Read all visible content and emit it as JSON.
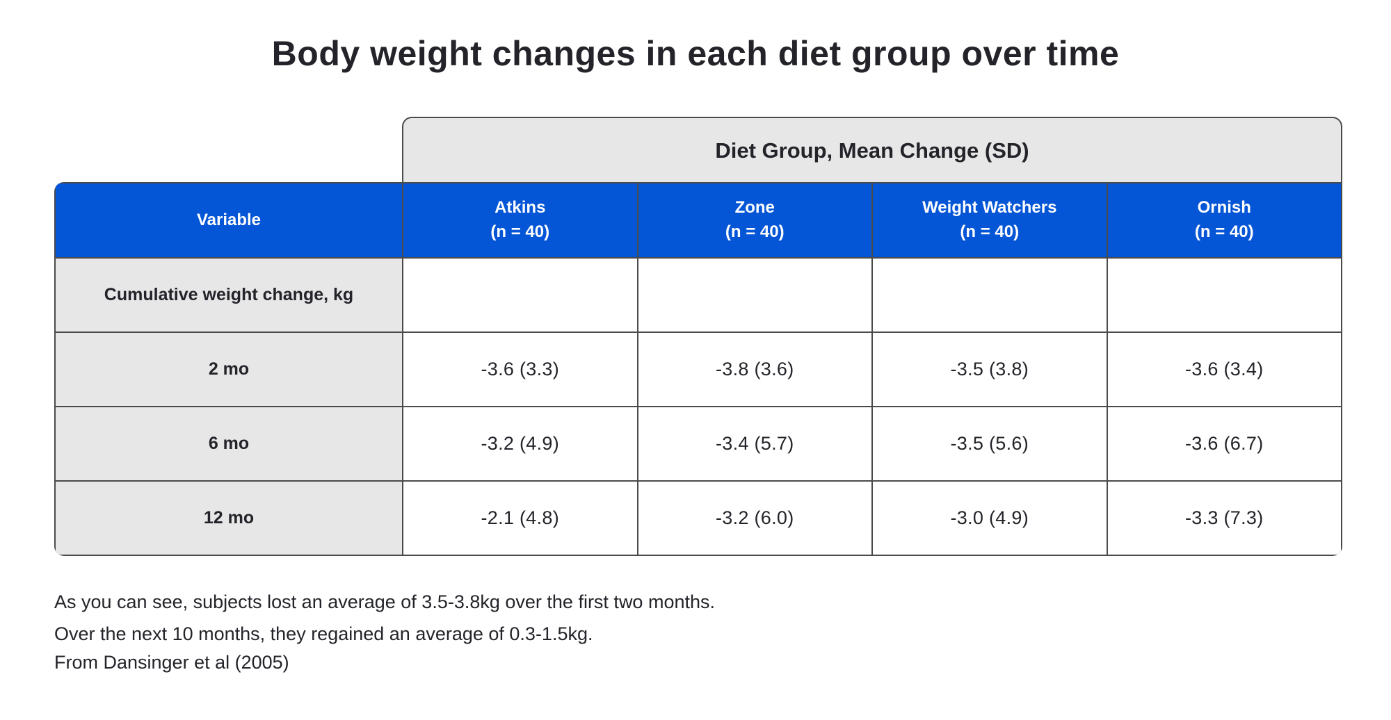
{
  "title": "Body weight changes in each diet group over time",
  "table": {
    "span_header": "Diet Group, Mean Change (SD)",
    "columns": [
      {
        "label": "Variable",
        "sub": ""
      },
      {
        "label": "Atkins",
        "sub": "(n = 40)"
      },
      {
        "label": "Zone",
        "sub": "(n = 40)"
      },
      {
        "label": "Weight Watchers",
        "sub": "(n = 40)"
      },
      {
        "label": "Ornish",
        "sub": "(n = 40)"
      }
    ],
    "rows": [
      {
        "label": "Cumulative weight change, kg",
        "values": [
          "",
          "",
          "",
          ""
        ]
      },
      {
        "label": "2 mo",
        "values": [
          "-3.6 (3.3)",
          "-3.8 (3.6)",
          "-3.5 (3.8)",
          "-3.6 (3.4)"
        ]
      },
      {
        "label": "6 mo",
        "values": [
          "-3.2 (4.9)",
          "-3.4 (5.7)",
          "-3.5 (5.6)",
          "-3.6 (6.7)"
        ]
      },
      {
        "label": "12 mo",
        "values": [
          "-2.1 (4.8)",
          "-3.2 (6.0)",
          "-3.0 (4.9)",
          "-3.3 (7.3)"
        ]
      }
    ]
  },
  "notes": {
    "line1": "As you can see, subjects lost an average of 3.5-3.8kg over the first two months.",
    "line2": "Over the next 10 months, they regained an average of 0.3-1.5kg.",
    "source": "From Dansinger et al (2005)"
  },
  "colors": {
    "header_blue": "#0556D6",
    "light_gray": "#E7E7E7",
    "border_gray": "#4a4a4a",
    "text_dark": "#232329",
    "background": "#ffffff"
  },
  "chart_data": {
    "type": "table",
    "title": "Body weight changes in each diet group over time",
    "column_group_header": "Diet Group, Mean Change (SD)",
    "columns": [
      "Variable",
      "Atkins (n = 40)",
      "Zone (n = 40)",
      "Weight Watchers (n = 40)",
      "Ornish (n = 40)"
    ],
    "rows": [
      [
        "Cumulative weight change, kg",
        "",
        "",
        "",
        ""
      ],
      [
        "2 mo",
        "-3.6 (3.3)",
        "-3.8 (3.6)",
        "-3.5 (3.8)",
        "-3.6 (3.4)"
      ],
      [
        "6 mo",
        "-3.2 (4.9)",
        "-3.4 (5.7)",
        "-3.5 (5.6)",
        "-3.6 (6.7)"
      ],
      [
        "12 mo",
        "-2.1 (4.8)",
        "-3.2 (6.0)",
        "-3.0 (4.9)",
        "-3.3 (7.3)"
      ]
    ],
    "sample_size_per_group": 40,
    "units": "kg, mean change (SD)",
    "notes": [
      "As you can see, subjects lost an average of 3.5-3.8kg over the first two months.",
      "Over the next 10 months, they regained an average of 0.3-1.5kg."
    ],
    "source": "From Dansinger et al (2005)"
  }
}
